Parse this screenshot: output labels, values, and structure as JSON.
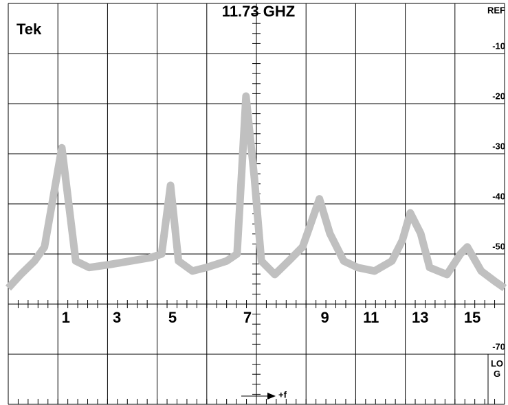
{
  "brand": "Tek",
  "chart_data": {
    "type": "line",
    "title": "11.73 GHZ",
    "x": [
      0,
      0.25,
      0.53,
      0.73,
      1.08,
      1.36,
      1.63,
      2.05,
      2.47,
      2.88,
      3.09,
      3.27,
      3.43,
      3.71,
      3.99,
      4.4,
      4.61,
      4.79,
      4.96,
      5.1,
      5.37,
      5.65,
      5.93,
      6.27,
      6.48,
      6.76,
      7.04,
      7.38,
      7.73,
      7.94,
      8.1,
      8.31,
      8.49,
      8.84,
      9.11,
      9.25,
      9.53,
      9.81,
      10
    ],
    "series": [
      {
        "color": "#c0c0c0",
        "values": [
          -56.8,
          -54.1,
          -51.4,
          -48.6,
          -28.8,
          -51.4,
          -52.7,
          -52.1,
          -51.4,
          -50.7,
          -50.0,
          -36.3,
          -51.4,
          -53.4,
          -52.7,
          -51.4,
          -50.0,
          -18.5,
          -34.9,
          -51.4,
          -54.1,
          -51.4,
          -48.6,
          -39.0,
          -45.9,
          -51.4,
          -52.7,
          -53.4,
          -51.4,
          -47.3,
          -41.8,
          -45.9,
          -52.7,
          -54.1,
          -50.0,
          -48.6,
          -53.4,
          -55.5,
          -56.8
        ]
      }
    ],
    "xlim": [
      0,
      10
    ],
    "ylim": [
      -80,
      0
    ],
    "xgrid": [
      0,
      1,
      2,
      3,
      4,
      5,
      6,
      7,
      8,
      9,
      10
    ],
    "xticks": [
      {
        "value": 1.16,
        "label": "1"
      },
      {
        "value": 2.19,
        "label": "3"
      },
      {
        "value": 3.31,
        "label": "5"
      },
      {
        "value": 4.82,
        "label": "7"
      },
      {
        "value": 6.38,
        "label": "9"
      },
      {
        "value": 7.31,
        "label": "11"
      },
      {
        "value": 8.3,
        "label": "13"
      },
      {
        "value": 9.35,
        "label": "15"
      }
    ],
    "yticks": [
      {
        "value": 0,
        "label": "REF"
      },
      -10,
      -20,
      -30,
      -40,
      -50,
      {
        "value": -60,
        "label": null
      },
      -70,
      {
        "value": -80,
        "label": null
      }
    ],
    "scale_label": "LOG",
    "freq_label": "+f"
  }
}
